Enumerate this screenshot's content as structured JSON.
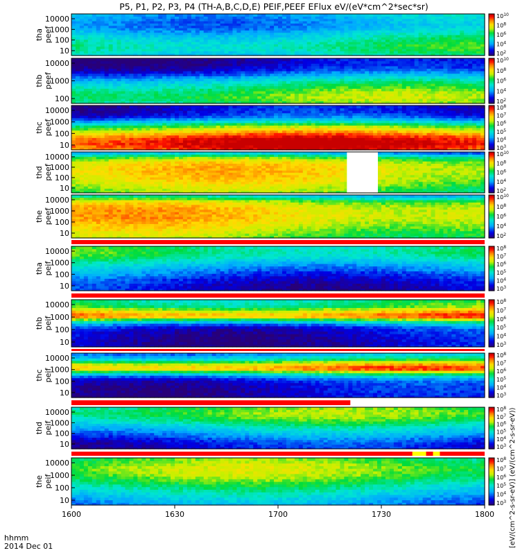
{
  "title": "P5, P1, P2, P3, P4 (TH-A,B,C,D,E) PEIF,PEEF EFlux eV/(eV*cm^2*sec*sr)",
  "colorbar_unit_label": "[eV/(cm^2-s-sr-eV)] (eV/(cm^2-s-sr-eV))",
  "time_axis": {
    "label_line1": "hhmm",
    "label_line2": "2014 Dec 01",
    "ticks": [
      "1600",
      "1630",
      "1700",
      "1730",
      "1800"
    ]
  },
  "colors": {
    "background": "#ffffff",
    "bad_flag_red": "#ff0000",
    "bad_flag_yellow": "#ffff00"
  },
  "chart_data": {
    "type": "heatmap",
    "x_unit": "hhmm",
    "x_range": [
      "1600",
      "1800"
    ],
    "y_scale": "log",
    "panels": [
      {
        "id": "tha_peef",
        "label1": "tha",
        "label2": "peef",
        "y_ticks": [
          "10000",
          "1000",
          "100",
          "10"
        ],
        "cbar_ticks": [
          "10^10",
          "10^8",
          "10^6",
          "10^4",
          "10^2"
        ],
        "levels_low_to_high_energy": [
          0.42,
          0.48,
          0.5,
          0.47,
          0.42,
          0.36,
          0.3,
          0.28,
          0.3,
          0.33
        ]
      },
      {
        "id": "thb_peef",
        "label1": "thb",
        "label2": "peef",
        "y_ticks": [
          "10000",
          "1000",
          "100"
        ],
        "cbar_ticks": [
          "10^10",
          "10^8",
          "10^6",
          "10^4",
          "10^2"
        ],
        "levels_low_to_high_energy": [
          0.55,
          0.6,
          0.58,
          0.52,
          0.45,
          0.35,
          0.22,
          0.12,
          0.08,
          0.06
        ]
      },
      {
        "id": "thc_peef",
        "label1": "thc",
        "label2": "peef",
        "y_ticks": [
          "10000",
          "1000",
          "100",
          "10"
        ],
        "cbar_ticks": [
          "10^8",
          "10^7",
          "10^6",
          "10^5",
          "10^4",
          "10^3"
        ],
        "levels_low_to_high_energy": [
          0.92,
          0.97,
          0.95,
          0.85,
          0.7,
          0.55,
          0.32,
          0.15,
          0.1,
          0.08
        ]
      },
      {
        "id": "thd_peef",
        "label1": "thd",
        "label2": "peef",
        "y_ticks": [
          "10000",
          "1000",
          "100",
          "10"
        ],
        "cbar_ticks": [
          "10^10",
          "10^8",
          "10^6",
          "10^4",
          "10^2"
        ],
        "levels_low_to_high_energy": [
          0.58,
          0.62,
          0.66,
          0.7,
          0.72,
          0.73,
          0.72,
          0.68,
          0.55,
          0.3
        ],
        "data_gap": [
          "1720",
          "1729"
        ]
      },
      {
        "id": "the_peef",
        "label1": "the",
        "label2": "peef",
        "y_ticks": [
          "10000",
          "1000",
          "100",
          "10"
        ],
        "cbar_ticks": [
          "10^10",
          "10^8",
          "10^6",
          "10^4",
          "10^2"
        ],
        "levels_low_to_high_energy": [
          0.6,
          0.64,
          0.68,
          0.72,
          0.75,
          0.76,
          0.75,
          0.72,
          0.62,
          0.4
        ]
      },
      {
        "id": "tha_peif",
        "label1": "tha",
        "label2": "peif",
        "y_ticks": [
          "10000",
          "1000",
          "100",
          "10"
        ],
        "cbar_ticks": [
          "10^8",
          "10^7",
          "10^6",
          "10^5",
          "10^4",
          "10^3"
        ],
        "levels_low_to_high_energy": [
          0.1,
          0.12,
          0.15,
          0.2,
          0.26,
          0.32,
          0.4,
          0.48,
          0.52,
          0.5
        ]
      },
      {
        "id": "thb_peif",
        "label1": "thb",
        "label2": "peif",
        "y_ticks": [
          "10000",
          "1000",
          "100",
          "10"
        ],
        "cbar_ticks": [
          "10^8",
          "10^7",
          "10^6",
          "10^5",
          "10^4",
          "10^3"
        ],
        "levels_low_to_high_energy": [
          0.08,
          0.08,
          0.1,
          0.12,
          0.2,
          0.48,
          0.9,
          0.75,
          0.55,
          0.5
        ]
      },
      {
        "id": "thc_peif",
        "label1": "thc",
        "label2": "peif",
        "y_ticks": [
          "10000",
          "1000",
          "100",
          "10"
        ],
        "cbar_ticks": [
          "10^8",
          "10^7",
          "10^6",
          "10^5",
          "10^4",
          "10^3"
        ],
        "levels_low_to_high_energy": [
          0.08,
          0.09,
          0.1,
          0.12,
          0.22,
          0.5,
          0.88,
          0.72,
          0.45,
          0.3
        ]
      },
      {
        "id": "thd_peif",
        "label1": "thd",
        "label2": "peif",
        "y_ticks": [
          "10000",
          "1000",
          "100",
          "10"
        ],
        "cbar_ticks": [
          "10^8",
          "10^7",
          "10^6",
          "10^5",
          "10^4",
          "10^3"
        ],
        "levels_low_to_high_energy": [
          0.1,
          0.12,
          0.18,
          0.25,
          0.32,
          0.4,
          0.48,
          0.55,
          0.58,
          0.55
        ]
      },
      {
        "id": "the_peif",
        "label1": "the",
        "label2": "peif",
        "y_ticks": [
          "10000",
          "1000",
          "100",
          "10"
        ],
        "cbar_ticks": [
          "10^8",
          "10^7",
          "10^6",
          "10^5",
          "10^4",
          "10^3"
        ],
        "levels_low_to_high_energy": [
          0.25,
          0.3,
          0.36,
          0.42,
          0.48,
          0.55,
          0.6,
          0.62,
          0.6,
          0.55
        ]
      }
    ]
  }
}
